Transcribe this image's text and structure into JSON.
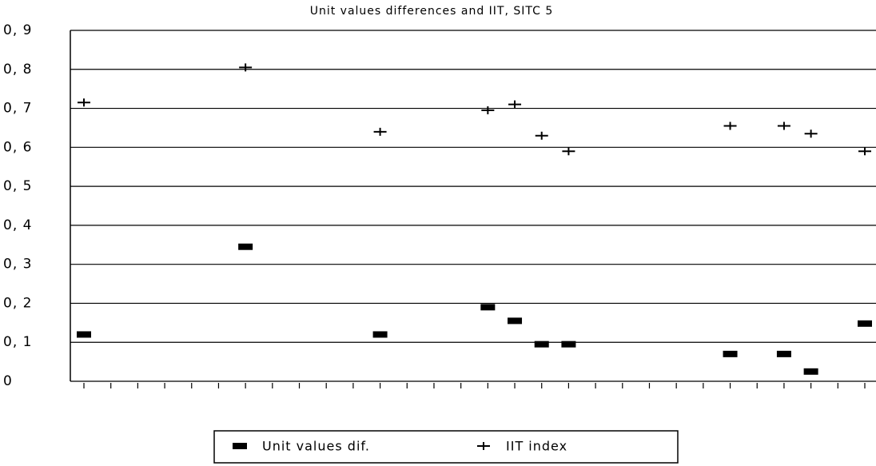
{
  "chart_data": {
    "type": "scatter",
    "title": "Unit values differences and IIT,  SITC 5",
    "categories": [
      null,
      null,
      null,
      null,
      null,
      null,
      null,
      null,
      null,
      null,
      null,
      null,
      null,
      null,
      null,
      null,
      null,
      null,
      null,
      null,
      null,
      null,
      null,
      null,
      null,
      null,
      null,
      null,
      null,
      null
    ],
    "series": [
      {
        "name": "Unit values dif.",
        "color": "#000000",
        "marker": "dash",
        "values": [
          0.12,
          null,
          null,
          null,
          null,
          null,
          0.345,
          null,
          null,
          null,
          null,
          0.12,
          null,
          null,
          null,
          0.19,
          0.155,
          0.095,
          0.095,
          null,
          null,
          null,
          null,
          null,
          0.07,
          null,
          0.07,
          0.025,
          null,
          0.148
        ]
      },
      {
        "name": "IIT index",
        "color": "#000000",
        "marker": "plus",
        "values": [
          0.715,
          null,
          null,
          null,
          null,
          null,
          0.805,
          null,
          null,
          null,
          null,
          0.64,
          null,
          null,
          null,
          0.695,
          0.71,
          0.63,
          0.59,
          null,
          null,
          null,
          null,
          null,
          0.655,
          null,
          0.655,
          0.635,
          null,
          0.59
        ]
      }
    ],
    "ylim": [
      0,
      0.9
    ],
    "yticks": [
      0,
      {
        "value": 0.1,
        "label": "0, 1"
      },
      {
        "value": 0.2,
        "label": "0, 2"
      },
      {
        "value": 0.3,
        "label": "0, 3"
      },
      {
        "value": 0.4,
        "label": "0, 4"
      },
      {
        "value": 0.5,
        "label": "0, 5"
      },
      {
        "value": 0.6,
        "label": "0, 6"
      },
      {
        "value": 0.7,
        "label": "0, 7"
      },
      {
        "value": 0.8,
        "label": "0, 8"
      },
      {
        "value": 0.9,
        "label": "0, 9"
      }
    ],
    "grid": true,
    "legend": "bottom"
  }
}
